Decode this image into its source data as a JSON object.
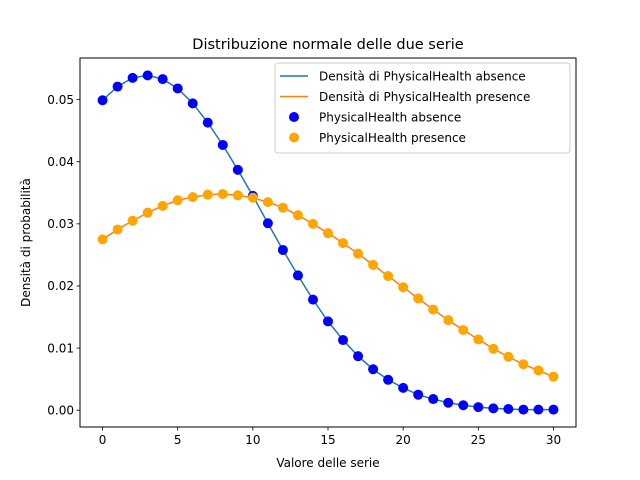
{
  "chart_data": {
    "type": "line",
    "title": "Distribuzione normale delle due serie",
    "xlabel": "Valore delle serie",
    "ylabel": "Densità di probabilità",
    "xlim": [
      -1.5,
      31.5
    ],
    "ylim": [
      -0.0027,
      0.0567
    ],
    "xticks": [
      "0",
      "5",
      "10",
      "15",
      "20",
      "25",
      "30"
    ],
    "yticks": [
      "0.00",
      "0.01",
      "0.02",
      "0.03",
      "0.04",
      "0.05"
    ],
    "legend_position": "top-right",
    "grid": false,
    "x": [
      0,
      1,
      2,
      3,
      4,
      5,
      6,
      7,
      8,
      9,
      10,
      11,
      12,
      13,
      14,
      15,
      16,
      17,
      18,
      19,
      20,
      21,
      22,
      23,
      24,
      25,
      26,
      27,
      28,
      29,
      30
    ],
    "series": [
      {
        "name": "PhysicalHealth absence",
        "line_label": "Densità di PhysicalHealth absence",
        "line_color": "#1f77b4",
        "marker_color": "#0000ff",
        "values": [
          0.0499,
          0.0521,
          0.0535,
          0.0539,
          0.0533,
          0.0518,
          0.0494,
          0.0463,
          0.0427,
          0.0387,
          0.0345,
          0.0301,
          0.0258,
          0.0217,
          0.0178,
          0.0143,
          0.0113,
          0.0087,
          0.0066,
          0.0049,
          0.0036,
          0.0025,
          0.0018,
          0.0012,
          0.0008,
          0.0005,
          0.0003,
          0.0002,
          0.0001,
          0.0001,
          0.0001
        ]
      },
      {
        "name": "PhysicalHealth presence",
        "line_label": "Densità di PhysicalHealth presence",
        "line_color": "#ff7f0e",
        "marker_color": "#ffa500",
        "values": [
          0.0275,
          0.0291,
          0.0305,
          0.0318,
          0.0329,
          0.0338,
          0.0343,
          0.0347,
          0.0348,
          0.0346,
          0.0342,
          0.0335,
          0.0326,
          0.0314,
          0.03,
          0.0285,
          0.0269,
          0.0252,
          0.0234,
          0.0216,
          0.0198,
          0.018,
          0.0162,
          0.0145,
          0.0129,
          0.0114,
          0.0099,
          0.0086,
          0.0074,
          0.0064,
          0.0054
        ]
      }
    ]
  }
}
